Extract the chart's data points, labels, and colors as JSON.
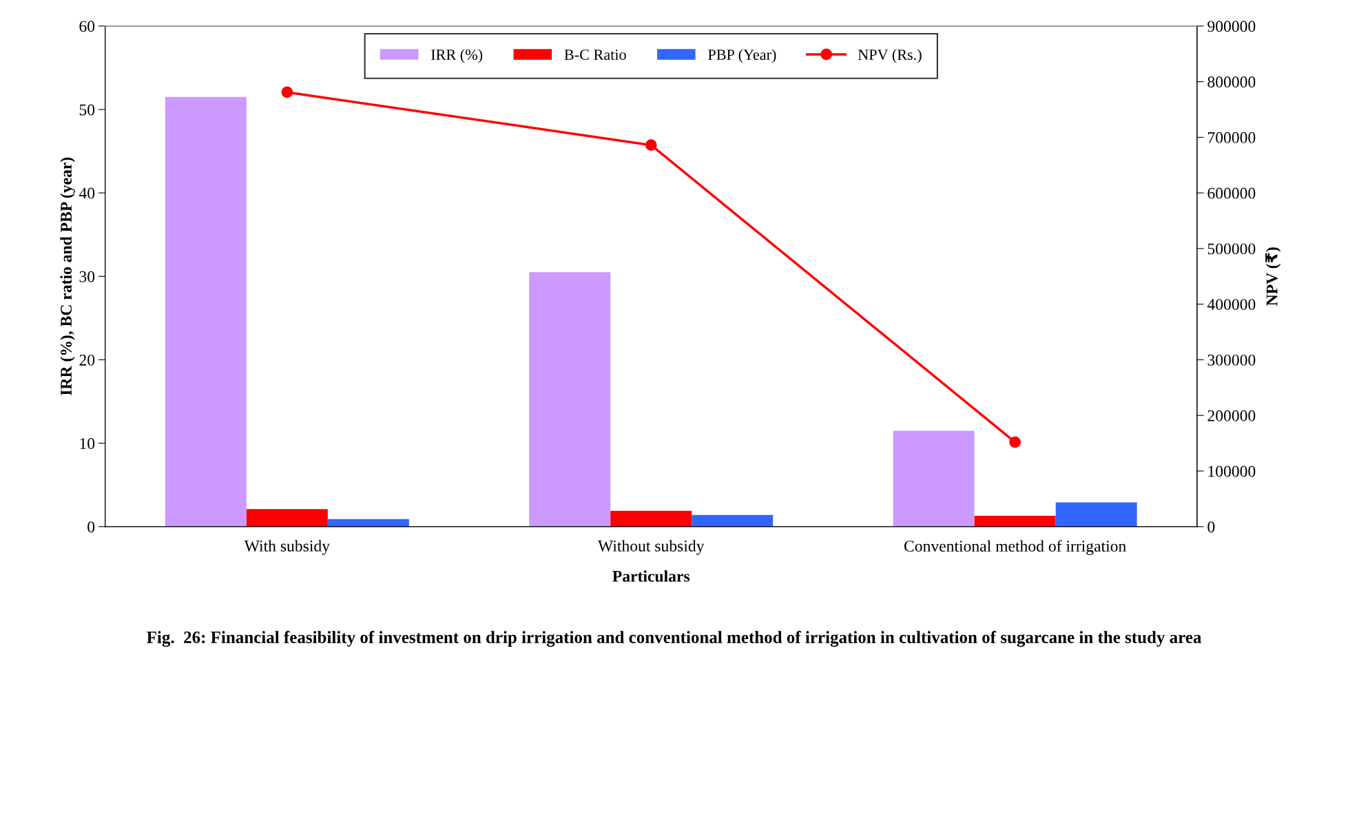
{
  "chart_data": {
    "type": "bar",
    "xlabel": "Particulars",
    "ylabel": "IRR (%), BC ratio and PBP (year)",
    "y2label": "NPV (₹)",
    "categories": [
      "With subsidy",
      "Without subsidy",
      "Conventional method of irrigation"
    ],
    "series": [
      {
        "name": "IRR (%)",
        "color": "#cc99ff",
        "values": [
          51.5,
          30.5,
          11.5
        ]
      },
      {
        "name": "B-C Ratio",
        "color": "#ff0000",
        "values": [
          2.1,
          1.9,
          1.3
        ]
      },
      {
        "name": "PBP (Year)",
        "color": "#3366ff",
        "values": [
          0.9,
          1.4,
          2.9
        ]
      },
      {
        "name": "NPV (Rs.)",
        "color": "#ff0000",
        "type": "line",
        "axis": "y2",
        "marker": "circle",
        "values": [
          781000,
          686000,
          152000
        ]
      }
    ],
    "ylim": [
      0,
      60
    ],
    "yticks": [
      0,
      10,
      20,
      30,
      40,
      50,
      60
    ],
    "y2lim": [
      0,
      900000
    ],
    "y2ticks": [
      0,
      100000,
      200000,
      300000,
      400000,
      500000,
      600000,
      700000,
      800000,
      900000
    ],
    "legend": "top",
    "grid": false,
    "annotations": [
      "Fig.  26: Financial feasibility of investment on drip irrigation and conventional method of irrigation in cultivation of sugarcane in the study area"
    ]
  }
}
